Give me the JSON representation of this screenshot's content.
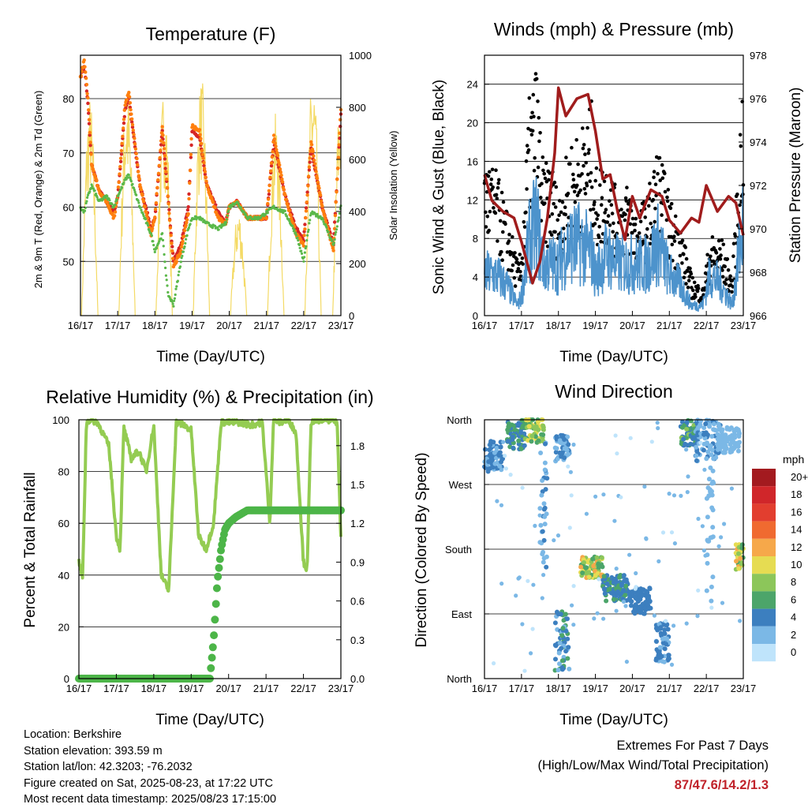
{
  "colors": {
    "temp2m": "#d62728",
    "temp9m": "#ff7f0e",
    "dewpoint": "#5bb84a",
    "solar": "#f2d44a",
    "wind": "#4d93cc",
    "gust": "#000000",
    "pressure": "#a01c1c",
    "rh": "#94cc52",
    "precip": "#4cb548"
  },
  "x_ticks": [
    "16/17",
    "17/17",
    "18/17",
    "19/17",
    "20/17",
    "21/17",
    "22/17",
    "23/17"
  ],
  "info": {
    "location": "Location: Berkshire",
    "elevation": "Station elevation: 393.59 m",
    "latlon": "Station lat/lon: 42.3203; -76.2032",
    "created": "Figure created on Sat, 2025-08-23, at 17:22 UTC",
    "recent": "Most recent data timestamp: 2025/08/23 17:15:00"
  },
  "extremes": {
    "line1": "Extremes For Past 7 Days",
    "line2": "(High/Low/Max Wind/Total Precipitation)",
    "values": "87/47.6/14.2/1.3"
  },
  "chart_data": [
    {
      "type": "line",
      "title": "Temperature (F)",
      "xlabel": "Time (Day/UTC)",
      "ylabel": "2m & 9m T (Red, Orange) & 2m Td (Green)",
      "y2label": "Solar Insolation (Yellow)",
      "ylim": [
        40,
        88
      ],
      "y2lim": [
        0,
        1000
      ],
      "yticks": [
        50,
        60,
        70,
        80
      ],
      "y2ticks": [
        0,
        200,
        400,
        600,
        800,
        1000
      ],
      "x": [
        16.0,
        16.1,
        16.2,
        16.3,
        16.5,
        16.7,
        16.9,
        17.0,
        17.2,
        17.3,
        17.6,
        17.9,
        18.0,
        18.2,
        18.35,
        18.5,
        18.7,
        18.9,
        19.0,
        19.2,
        19.4,
        19.7,
        19.9,
        20.0,
        20.2,
        20.5,
        20.8,
        21.0,
        21.2,
        21.5,
        21.8,
        22.0,
        22.2,
        22.5,
        22.8,
        23.0
      ],
      "series": [
        {
          "name": "2m T (Red)",
          "values": [
            84,
            87,
            80,
            68,
            63,
            61,
            58,
            62,
            79,
            81,
            64,
            55,
            58,
            75,
            62,
            49,
            52,
            59,
            75,
            74,
            64,
            58,
            57,
            60,
            61,
            58,
            58,
            58,
            73,
            62,
            55,
            53,
            72,
            60,
            52,
            78
          ]
        },
        {
          "name": "9m T (Orange)",
          "values": [
            84,
            86,
            79,
            68,
            63,
            61,
            59,
            62,
            78,
            80,
            64,
            56,
            58,
            74,
            62,
            50,
            53,
            60,
            74,
            73,
            64,
            59,
            57,
            60,
            61,
            58,
            58,
            58,
            72,
            62,
            56,
            54,
            71,
            60,
            53,
            77
          ]
        },
        {
          "name": "2m Td (Green)",
          "values": [
            60,
            59,
            62,
            64,
            61,
            62,
            60,
            62,
            65,
            66,
            60,
            55,
            52,
            55,
            44,
            42,
            50,
            56,
            58,
            58,
            57,
            56,
            57,
            60,
            61,
            58,
            58,
            59,
            60,
            59,
            55,
            50,
            59,
            58,
            53,
            60
          ]
        }
      ],
      "solar_days": [
        16.25,
        17.25,
        18.25,
        19.25,
        20.25,
        21.25,
        22.25,
        23.0
      ],
      "solar_peaks": [
        850,
        900,
        880,
        920,
        420,
        780,
        950,
        900
      ]
    },
    {
      "type": "scatter",
      "title": "Winds (mph) & Pressure (mb)",
      "xlabel": "Time (Day/UTC)",
      "ylabel": "Sonic Wind & Gust (Blue, Black)",
      "y2label": "Station Pressure (Maroon)",
      "ylim": [
        0,
        27
      ],
      "y2lim": [
        966,
        978
      ],
      "yticks": [
        0,
        4,
        8,
        12,
        16,
        20,
        24
      ],
      "y2ticks": [
        966,
        968,
        970,
        972,
        974,
        976,
        978
      ],
      "pressure_x": [
        16.0,
        16.2,
        16.5,
        16.8,
        17.0,
        17.3,
        17.5,
        17.7,
        17.9,
        18.0,
        18.2,
        18.5,
        18.8,
        19.0,
        19.2,
        19.4,
        19.6,
        19.8,
        20.0,
        20.2,
        20.5,
        20.8,
        21.0,
        21.3,
        21.6,
        21.8,
        22.0,
        22.3,
        22.6,
        22.8,
        23.0
      ],
      "pressure_mb": [
        972.5,
        971.3,
        970.8,
        970.5,
        969.4,
        967.5,
        968.5,
        970.5,
        973.5,
        976.5,
        975.2,
        976.0,
        976.2,
        974.5,
        972.3,
        972.5,
        970.8,
        969.5,
        971.5,
        970.5,
        971.8,
        971.5,
        970.4,
        969.8,
        970.5,
        970.3,
        972.0,
        970.8,
        971.5,
        971.2,
        969.7
      ],
      "wind_x": [
        16.0,
        16.3,
        16.6,
        16.9,
        17.0,
        17.2,
        17.4,
        17.6,
        17.8,
        18.0,
        18.3,
        18.6,
        18.9,
        19.0,
        19.3,
        19.6,
        19.9,
        20.1,
        20.4,
        20.7,
        21.0,
        21.3,
        21.6,
        21.9,
        22.1,
        22.4,
        22.7,
        23.0
      ],
      "wind_mph": [
        4,
        4,
        3,
        1,
        2,
        7,
        9,
        5,
        5,
        5,
        7,
        7,
        6,
        4,
        6,
        5,
        5,
        5,
        5,
        7,
        4,
        3,
        1,
        1,
        4,
        3,
        1,
        9
      ],
      "gust_mph": [
        12,
        11,
        8,
        4,
        5,
        16,
        19,
        11,
        12,
        9,
        13,
        14,
        16,
        11,
        12,
        9,
        10,
        8,
        9,
        13,
        9,
        7,
        3,
        2,
        6,
        6,
        3,
        19
      ]
    },
    {
      "type": "line",
      "title": "Relative Humidity (%) & Precipitation (in)",
      "xlabel": "Time (Day/UTC)",
      "ylabel": "Percent & Total Rainfall",
      "ylim": [
        0,
        100
      ],
      "y2lim": [
        0.0,
        2.0
      ],
      "yticks": [
        0,
        20,
        40,
        60,
        80,
        100
      ],
      "y2ticks": [
        "0.0",
        "0.3",
        "0.6",
        "0.9",
        "1.2",
        "1.5",
        "1.8"
      ],
      "rh_x": [
        16.0,
        16.1,
        16.2,
        16.3,
        16.5,
        16.8,
        17.0,
        17.1,
        17.2,
        17.4,
        17.6,
        17.8,
        18.0,
        18.2,
        18.4,
        18.6,
        18.8,
        19.0,
        19.2,
        19.4,
        19.6,
        19.8,
        20.0,
        20.3,
        20.6,
        20.9,
        21.0,
        21.1,
        21.2,
        21.4,
        21.6,
        21.8,
        22.0,
        22.1,
        22.2,
        22.4,
        22.7,
        22.9,
        23.0
      ],
      "rh_pct": [
        45,
        39,
        99,
        100,
        99,
        90,
        55,
        50,
        97,
        85,
        88,
        80,
        98,
        40,
        34,
        99,
        98,
        96,
        55,
        50,
        60,
        99,
        99,
        99,
        98,
        99,
        80,
        60,
        100,
        99,
        100,
        95,
        45,
        42,
        99,
        100,
        100,
        99,
        55
      ],
      "precip_x": [
        16.0,
        19.5,
        19.6,
        19.7,
        19.8,
        19.9,
        20.0,
        20.2,
        20.5,
        21.0,
        22.0,
        23.0
      ],
      "precip_in": [
        0.0,
        0.0,
        0.3,
        0.75,
        1.0,
        1.15,
        1.2,
        1.25,
        1.3,
        1.3,
        1.3,
        1.3
      ]
    },
    {
      "type": "scatter",
      "title": "Wind Direction",
      "xlabel": "Time (Day/UTC)",
      "ylabel": "Direction (Colored By Speed)",
      "yticks": [
        "North",
        "West",
        "South",
        "East",
        "North"
      ],
      "legend_title": "mph",
      "legend_labels": [
        "20+",
        "18",
        "16",
        "14",
        "12",
        "10",
        "8",
        "6",
        "4",
        "2",
        "0"
      ],
      "legend_colors": [
        "#a31a1f",
        "#d0262a",
        "#e23e2f",
        "#f06a30",
        "#f6a84a",
        "#e6dc52",
        "#8cc65a",
        "#4ca56a",
        "#3c7fbf",
        "#7bb8e6",
        "#bfe4fb"
      ]
    }
  ]
}
